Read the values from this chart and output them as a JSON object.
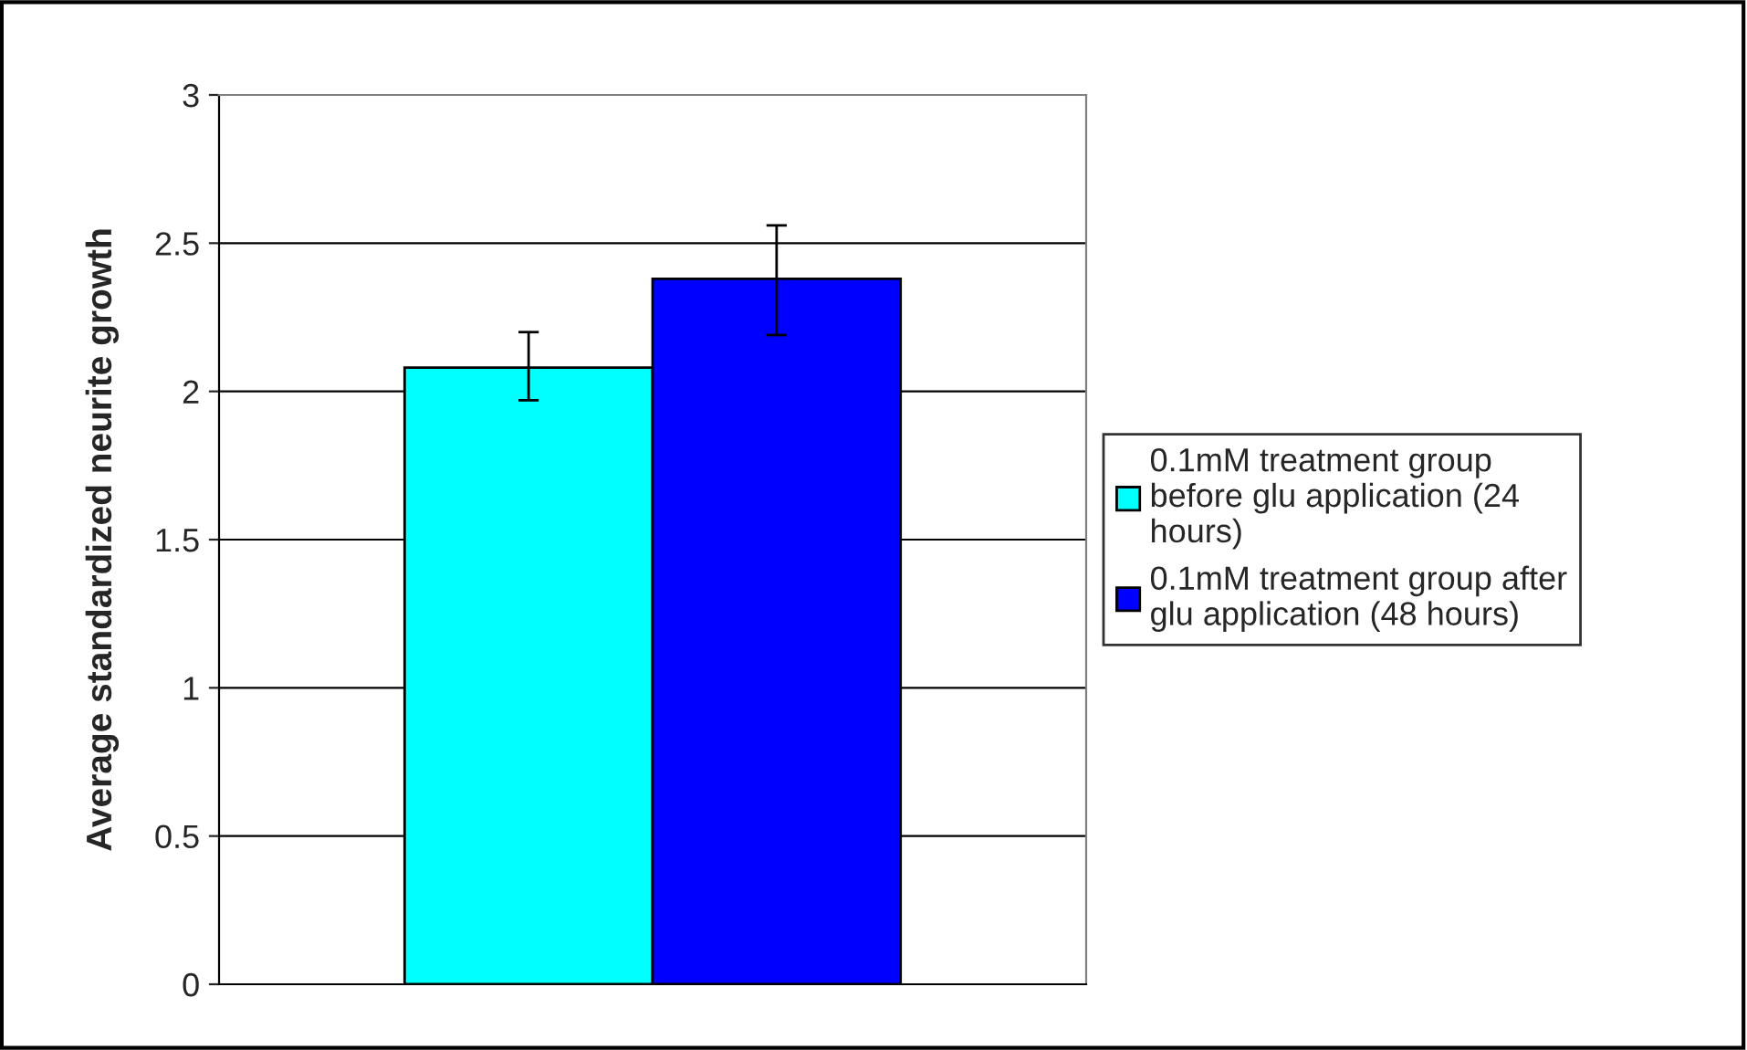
{
  "chart_data": {
    "type": "bar",
    "ylabel": "Average standardized neurite growth",
    "categories": [
      null
    ],
    "series": [
      {
        "name": "0.1mM treatment group before glu application (24 hours)",
        "color": "#00ffff",
        "values": [
          2.08
        ],
        "errors": [
          [
            1.97,
            2.2
          ]
        ]
      },
      {
        "name": "0.1mM treatment group after glu application (48 hours)",
        "color": "#0000ff",
        "values": [
          2.38
        ],
        "errors": [
          [
            2.19,
            2.56
          ]
        ]
      }
    ],
    "ylim": [
      0,
      3
    ],
    "yticks": [
      0,
      0.5,
      1,
      1.5,
      2,
      2.5,
      3
    ],
    "grid": "y",
    "legend": "right"
  }
}
